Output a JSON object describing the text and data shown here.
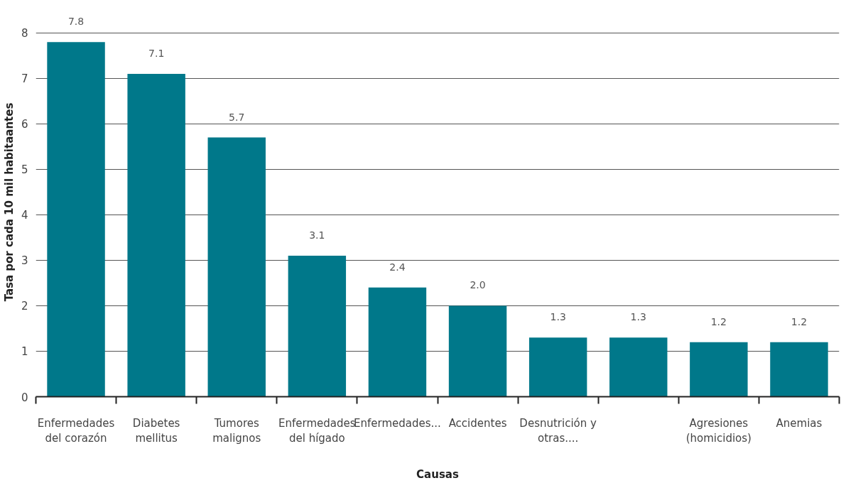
{
  "chart_data": {
    "type": "bar",
    "xlabel": "Causas",
    "ylabel": "Tasa por cada 10 mil habitaantes",
    "categories": [
      "Enfermedades del corazón",
      "Diabetes mellitus",
      "Tumores malignos",
      "Enfermedades del hígado",
      "Enfermedades...",
      "Accidentes",
      "Desnutrición y otras....",
      null,
      "Agresiones (homicidios)",
      "Anemias"
    ],
    "values": [
      7.8,
      7.1,
      5.7,
      3.1,
      2.4,
      2.0,
      1.3,
      1.3,
      1.2,
      1.2
    ],
    "value_labels": [
      "7.8",
      "7.1",
      "5.7",
      "3.1",
      "2.4",
      "2.0",
      "1.3",
      "1.3",
      "1.2",
      "1.2"
    ],
    "color": "#00788a",
    "ylim": [
      0,
      8
    ],
    "yticks": [
      0,
      1,
      2,
      3,
      4,
      5,
      6,
      7,
      8
    ],
    "grid": "y",
    "legend": false
  }
}
